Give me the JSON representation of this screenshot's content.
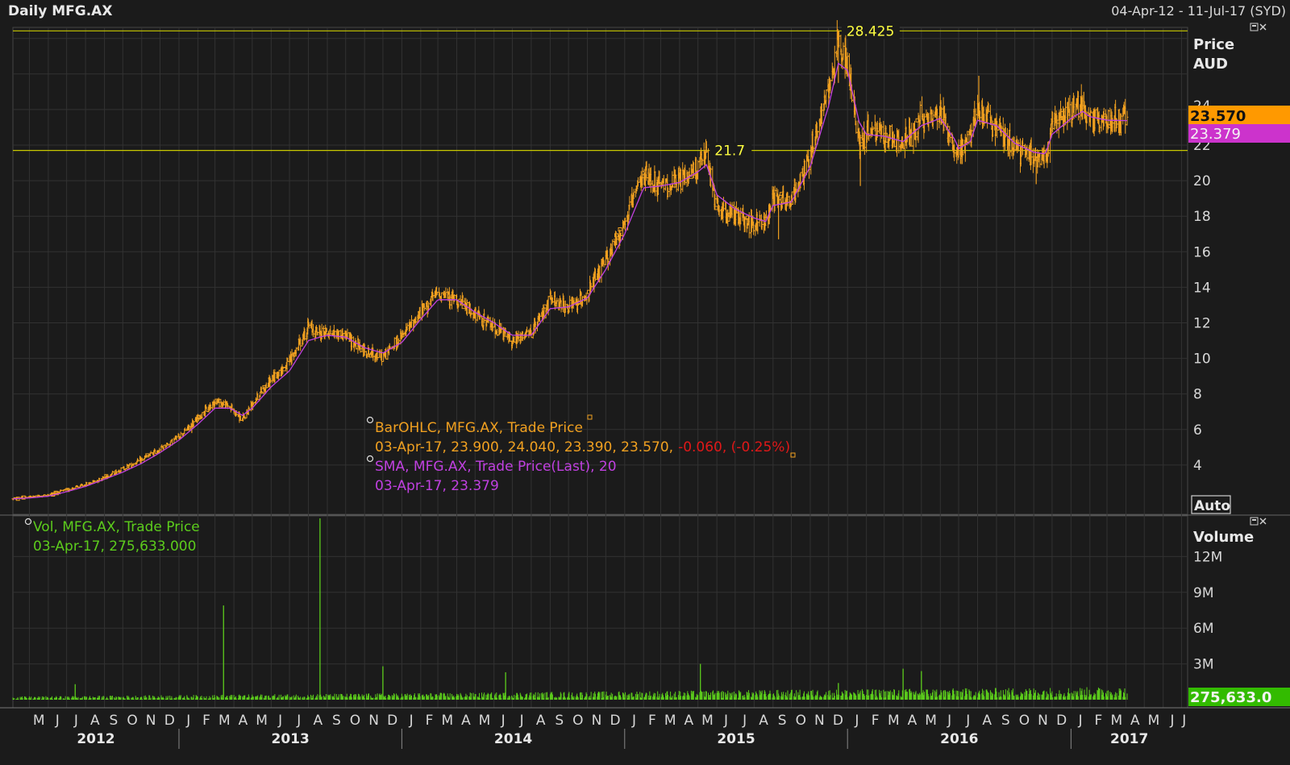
{
  "header": {
    "title": "Daily MFG.AX",
    "date_range": "04-Apr-12 - 11-Jul-17 (SYD)"
  },
  "price_panel": {
    "axis_title_line1": "Price",
    "axis_title_line2": "AUD",
    "auto_button": "Auto",
    "last_price_badge": "23.570",
    "sma_badge": "23.379",
    "hidden_tick": "24",
    "hlines": [
      {
        "value": 28.425,
        "label": "28.425",
        "label_date": "2015-12-17"
      },
      {
        "value": 21.7,
        "label": "21.7",
        "label_date": "2015-05-15"
      }
    ],
    "legend": {
      "ohlc_name": "BarOHLC, MFG.AX, Trade Price",
      "ohlc_values": "03-Apr-17, 23.900, 24.040, 23.390, 23.570,",
      "ohlc_change": "-0.060, (-0.25%)",
      "sma_name": "SMA, MFG.AX, Trade Price(Last),  20",
      "sma_values": "03-Apr-17, 23.379"
    }
  },
  "volume_panel": {
    "axis_title": "Volume",
    "last_volume_badge": "275,633.0",
    "legend": {
      "name": "Vol, MFG.AX, Trade Price",
      "values": "03-Apr-17, 275,633.000"
    }
  },
  "time_axis": {
    "months": [
      "M",
      "J",
      "J",
      "A",
      "S",
      "O",
      "N",
      "D",
      "J",
      "F",
      "M",
      "A",
      "M",
      "J",
      "J",
      "A",
      "S",
      "O",
      "N",
      "D",
      "J",
      "F",
      "M",
      "A",
      "M",
      "J",
      "J",
      "A",
      "S",
      "O",
      "N",
      "D",
      "J",
      "F",
      "M",
      "A",
      "M",
      "J",
      "J",
      "A",
      "S",
      "O",
      "N",
      "D",
      "J",
      "F",
      "M",
      "A",
      "M",
      "J",
      "J",
      "A",
      "S",
      "O",
      "N",
      "D",
      "J",
      "F",
      "M",
      "A",
      "M",
      "J",
      "J"
    ],
    "years": [
      "2012",
      "2013",
      "2014",
      "2015",
      "2016",
      "2017"
    ]
  },
  "colors": {
    "background": "#1b1b1b",
    "grid": "#323232",
    "price_bars": "#f0a020",
    "sma": "#c040e0",
    "volume": "#5ccc1c",
    "hline": "#c8c800",
    "hline_label": "#ffff40",
    "change_negative": "#e01818",
    "last_badge": "#ff9900",
    "sma_badge": "#cc33cc",
    "volume_badge": "#33bb00"
  },
  "chart_data": [
    {
      "type": "ohlc-line",
      "series": [
        {
          "name": "BarOHLC, MFG.AX, Trade Price",
          "field": "close"
        },
        {
          "name": "SMA, MFG.AX, Trade Price(Last),  20",
          "field": "sma"
        }
      ],
      "x": [
        "2012-04-04",
        "2012-05-01",
        "2012-06-01",
        "2012-07-01",
        "2012-08-01",
        "2012-09-01",
        "2012-10-01",
        "2012-11-01",
        "2012-12-01",
        "2013-01-01",
        "2013-02-01",
        "2013-03-01",
        "2013-03-25",
        "2013-04-15",
        "2013-05-01",
        "2013-06-01",
        "2013-07-01",
        "2013-08-01",
        "2013-08-20",
        "2013-09-01",
        "2013-10-01",
        "2013-11-01",
        "2013-12-01",
        "2014-01-01",
        "2014-02-01",
        "2014-03-01",
        "2014-04-01",
        "2014-05-01",
        "2014-06-01",
        "2014-07-01",
        "2014-08-01",
        "2014-09-01",
        "2014-10-01",
        "2014-11-01",
        "2014-12-01",
        "2015-01-01",
        "2015-02-01",
        "2015-03-01",
        "2015-04-01",
        "2015-05-01",
        "2015-05-15",
        "2015-06-01",
        "2015-07-01",
        "2015-08-01",
        "2015-08-20",
        "2015-09-01",
        "2015-10-01",
        "2015-11-01",
        "2015-12-01",
        "2015-12-17",
        "2016-01-01",
        "2016-01-20",
        "2016-02-01",
        "2016-03-01",
        "2016-04-01",
        "2016-05-01",
        "2016-06-01",
        "2016-06-25",
        "2016-07-01",
        "2016-07-20",
        "2016-08-01",
        "2016-09-01",
        "2016-10-01",
        "2016-11-01",
        "2016-11-20",
        "2016-12-01",
        "2017-01-01",
        "2017-01-20",
        "2017-02-01",
        "2017-03-01",
        "2017-04-03"
      ],
      "close": [
        2.1,
        2.2,
        2.3,
        2.6,
        2.9,
        3.3,
        3.8,
        4.3,
        4.9,
        5.6,
        6.6,
        7.6,
        7.3,
        6.5,
        7.5,
        8.8,
        9.8,
        11.8,
        11.4,
        11.5,
        11.3,
        10.4,
        10.1,
        11.2,
        12.6,
        13.7,
        13.3,
        12.4,
        11.8,
        11.0,
        11.4,
        13.3,
        12.8,
        13.6,
        15.5,
        17.6,
        20.4,
        19.6,
        20.0,
        20.8,
        21.3,
        18.4,
        18.1,
        17.5,
        17.8,
        19.2,
        18.8,
        21.5,
        25.2,
        28.0,
        26.5,
        22.0,
        22.8,
        22.5,
        22.0,
        23.5,
        23.8,
        21.8,
        21.5,
        22.5,
        24.0,
        23.0,
        21.8,
        21.3,
        21.5,
        23.0,
        24.0,
        24.2,
        23.5,
        23.3,
        23.57
      ],
      "sma": [
        2.1,
        2.15,
        2.25,
        2.5,
        2.8,
        3.2,
        3.6,
        4.1,
        4.7,
        5.4,
        6.3,
        7.2,
        7.2,
        6.8,
        7.2,
        8.4,
        9.3,
        11.0,
        11.2,
        11.3,
        11.2,
        10.6,
        10.3,
        10.9,
        12.2,
        13.3,
        13.3,
        12.6,
        12.0,
        11.3,
        11.3,
        12.8,
        12.9,
        13.4,
        15.0,
        17.0,
        19.6,
        19.7,
        19.9,
        20.5,
        20.9,
        19.2,
        18.4,
        17.9,
        17.7,
        18.6,
        18.8,
        20.8,
        24.2,
        26.6,
        26.2,
        23.3,
        22.6,
        22.5,
        22.2,
        23.1,
        23.5,
        22.3,
        21.8,
        22.2,
        23.4,
        23.1,
        22.1,
        21.6,
        21.5,
        22.6,
        23.5,
        23.9,
        23.6,
        23.4,
        23.379
      ],
      "ylim": [
        2,
        30
      ],
      "y_ticks": [
        4,
        6,
        8,
        10,
        12,
        14,
        16,
        18,
        20,
        22
      ],
      "events": [
        {
          "date": "2013-01-22",
          "kind": "dip",
          "value": 5.8
        },
        {
          "date": "2015-09-10",
          "kind": "dip",
          "value": 16.7
        },
        {
          "date": "2016-01-22",
          "kind": "dip",
          "value": 19.7
        },
        {
          "date": "2016-11-05",
          "kind": "dip",
          "value": 19.8
        },
        {
          "date": "2016-08-03",
          "kind": "spike",
          "value": 25.9
        },
        {
          "date": "2017-01-22",
          "kind": "spike",
          "value": 25.0
        }
      ]
    },
    {
      "type": "bar",
      "series": [
        {
          "name": "Vol, MFG.AX, Trade Price"
        }
      ],
      "base_volume": 400000,
      "spikes": [
        {
          "date": "2012-07-15",
          "value": 1300000
        },
        {
          "date": "2013-03-15",
          "value": 7900000
        },
        {
          "date": "2013-08-20",
          "value": 15200000
        },
        {
          "date": "2013-12-01",
          "value": 2800000
        },
        {
          "date": "2014-06-20",
          "value": 2300000
        },
        {
          "date": "2015-05-05",
          "value": 3000000
        },
        {
          "date": "2015-12-17",
          "value": 1400000
        },
        {
          "date": "2016-04-01",
          "value": 2600000
        },
        {
          "date": "2016-05-01",
          "value": 2400000
        }
      ],
      "last_value": 275633,
      "ylim": [
        0,
        15000000
      ],
      "y_ticks": [
        {
          "value": 3000000,
          "label": "3M"
        },
        {
          "value": 6000000,
          "label": "6M"
        },
        {
          "value": 9000000,
          "label": "9M"
        },
        {
          "value": 12000000,
          "label": "12M"
        }
      ]
    }
  ]
}
